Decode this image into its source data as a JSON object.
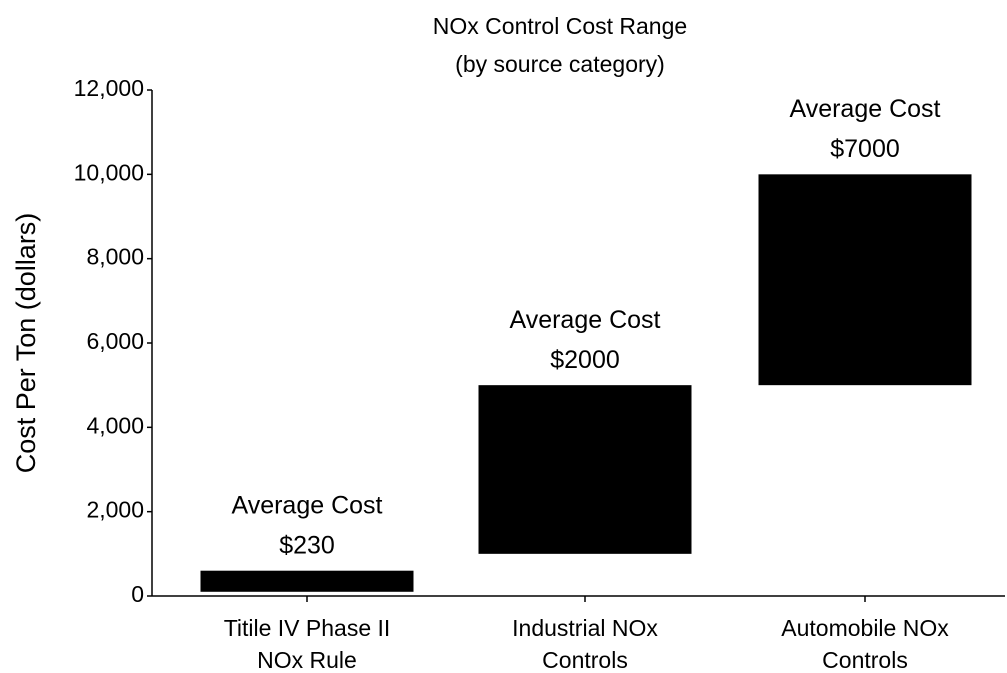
{
  "chart_data": {
    "type": "floating-bar",
    "title": "NOx Control Cost Range",
    "subtitle": "(by source category)",
    "y_label": "Cost Per Ton (dollars)",
    "categories": [
      [
        "Titile IV Phase II",
        "NOx Rule"
      ],
      [
        "Industrial NOx",
        "Controls"
      ],
      [
        "Automobile NOx",
        "Controls"
      ]
    ],
    "low": [
      100,
      1000,
      5000
    ],
    "high": [
      600,
      5000,
      10000
    ],
    "annotations": [
      [
        "Average Cost",
        "$230"
      ],
      [
        "Average Cost",
        "$2000"
      ],
      [
        "Average Cost",
        "$7000"
      ]
    ],
    "color": "#000000",
    "ylim": [
      0,
      12000
    ],
    "yticks": [
      0,
      {
        "value": 2000,
        "label": "2,000"
      },
      {
        "value": 4000,
        "label": "4,000"
      },
      {
        "value": 6000,
        "label": "6,000"
      },
      {
        "value": 8000,
        "label": "8,000"
      },
      {
        "value": 10000,
        "label": "10,000"
      },
      {
        "value": 12000,
        "label": "12,000"
      }
    ]
  }
}
